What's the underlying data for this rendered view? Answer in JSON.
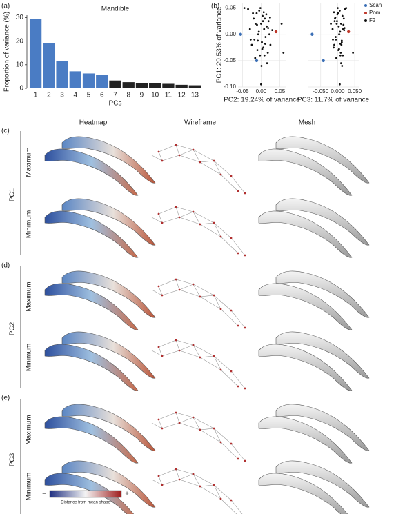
{
  "panel_labels": [
    "(a)",
    "(b)",
    "(c)",
    "(d)",
    "(e)"
  ],
  "columns": [
    "Heatmap",
    "Wireframe",
    "Mesh"
  ],
  "rows": [
    "Maximum",
    "Minimum"
  ],
  "pcs": [
    "PC1",
    "PC2",
    "PC3"
  ],
  "colorbar": {
    "label": "Distance from mean shape",
    "low": "−",
    "high": "+"
  },
  "chart_data": [
    {
      "type": "bar",
      "title": "Mandible",
      "x_label": "PCs",
      "y_label": "Proportion of variance (%)",
      "categories": [
        "1",
        "2",
        "3",
        "4",
        "5",
        "6",
        "7",
        "8",
        "9",
        "10",
        "11",
        "12",
        "13"
      ],
      "values": [
        29.5,
        19.2,
        11.7,
        7.2,
        6.3,
        5.7,
        3.3,
        2.6,
        2.3,
        2.1,
        1.9,
        1.5,
        1.3
      ],
      "colors": [
        "#4a7cc4",
        "#4a7cc4",
        "#4a7cc4",
        "#4a7cc4",
        "#4a7cc4",
        "#4a7cc4",
        "#222222",
        "#222222",
        "#222222",
        "#222222",
        "#222222",
        "#222222",
        "#222222"
      ],
      "ylim": [
        0,
        31
      ],
      "yticks": [
        0,
        10,
        20,
        30
      ]
    },
    {
      "type": "scatter",
      "x_label": "PC2: 19.24% of variance",
      "y_label": "PC1: 29.53% of variance",
      "xlim": [
        -0.062,
        0.066
      ],
      "xticks": [
        {
          "value": -0.05,
          "label": "-0.05"
        },
        {
          "value": 0,
          "label": "0.00"
        },
        {
          "value": 0.05,
          "label": "0.05"
        }
      ],
      "ylim": [
        -0.1,
        0.06
      ],
      "yticks": [
        {
          "value": 0.05,
          "label": "0.05"
        },
        {
          "value": 0,
          "label": "0.00"
        },
        {
          "value": -0.05,
          "label": "-0.05"
        },
        {
          "value": -0.1,
          "label": "-0.10"
        }
      ],
      "grid": true,
      "series": [
        {
          "color": "#111111",
          "x": [
            -0.03,
            -0.025,
            -0.02,
            -0.018,
            -0.015,
            -0.012,
            -0.01,
            -0.008,
            -0.005,
            -0.003,
            0,
            0.002,
            0.004,
            0.006,
            0.008,
            0.01,
            0.012,
            0.015,
            0.018,
            0.02,
            0.022,
            0.025,
            -0.022,
            -0.016,
            -0.006,
            0.001,
            0.005,
            0.009,
            0.014,
            0.019,
            -0.028,
            -0.011,
            0.003,
            0.011,
            0.024,
            0.03,
            -0.035,
            0.055,
            0.06,
            -0.045,
            0,
            -0.002,
            0.016,
            0.007,
            -0.009
          ],
          "values": [
            0.01,
            -0.02,
            0.03,
            -0.01,
            0.02,
            0.04,
            -0.03,
            0,
            0.045,
            -0.04,
            0.02,
            -0.015,
            0.035,
            -0.025,
            0.01,
            0.03,
            -0.005,
            0.015,
            -0.035,
            0.025,
            0,
            -0.02,
            0.04,
            -0.045,
            0.005,
            -0.06,
            0.025,
            -0.04,
            0.038,
            0.012,
            -0.01,
            0.018,
            -0.028,
            -0.018,
            0.032,
            0.008,
            0.048,
            0.02,
            -0.035,
            0.05,
            -0.095,
            0.05,
            -0.055,
            0.042,
            -0.012
          ]
        },
        {
          "color": "#3b6fb6",
          "x": [
            -0.055,
            -0.012
          ],
          "values": [
            0,
            -0.05
          ]
        },
        {
          "color": "#c0392b",
          "x": [
            0.04
          ],
          "values": [
            0.005
          ]
        }
      ]
    },
    {
      "type": "scatter",
      "x_label": "PC3: 11.7% of variance",
      "legend": "right",
      "xlim": [
        -0.088,
        0.062
      ],
      "xticks": [
        {
          "value": -0.05,
          "label": "-0.050"
        },
        {
          "value": 0,
          "label": "0.000"
        },
        {
          "value": 0.05,
          "label": "0.050"
        }
      ],
      "ylim": [
        -0.1,
        0.06
      ],
      "yticks": [
        0.05,
        0,
        -0.05,
        -0.1
      ],
      "grid": true,
      "series": [
        {
          "name": "Scan",
          "color": "#3b6fb6",
          "x": [
            -0.075,
            -0.042
          ],
          "values": [
            0,
            -0.05
          ]
        },
        {
          "name": "Pom",
          "color": "#c0392b",
          "x": [
            0.032
          ],
          "values": [
            0.005
          ]
        },
        {
          "name": "F2",
          "color": "#111111",
          "x": [
            -0.015,
            -0.01,
            -0.008,
            -0.005,
            -0.003,
            0,
            0.002,
            0.004,
            0.006,
            0.008,
            0.01,
            0.012,
            0.014,
            -0.012,
            0.016,
            0.018,
            -0.006,
            0.003,
            0.009,
            -0.002,
            0.005,
            0.011,
            0.001,
            -0.004,
            0.007,
            0.013,
            -0.009,
            0.015,
            -0.001,
            0.02,
            -0.014,
            0.017,
            0.004,
            0.008,
            -0.007,
            0.019,
            0.022,
            -0.02,
            0.045,
            0.025,
            0.006,
            0,
            0.01,
            -0.011,
            0.012
          ],
          "values": [
            0.01,
            -0.02,
            0.03,
            -0.01,
            0.02,
            0.04,
            -0.03,
            0,
            0.045,
            -0.04,
            0.02,
            -0.015,
            0.035,
            -0.025,
            0.01,
            0.03,
            -0.005,
            0.015,
            -0.035,
            0.025,
            0,
            -0.02,
            0.04,
            -0.045,
            0.005,
            -0.06,
            0.025,
            -0.04,
            0.038,
            0.012,
            -0.01,
            0.018,
            -0.028,
            -0.018,
            0.032,
            0.008,
            0.048,
            0.02,
            -0.035,
            0.05,
            -0.095,
            0.05,
            -0.055,
            0.042,
            -0.012
          ]
        }
      ]
    }
  ]
}
